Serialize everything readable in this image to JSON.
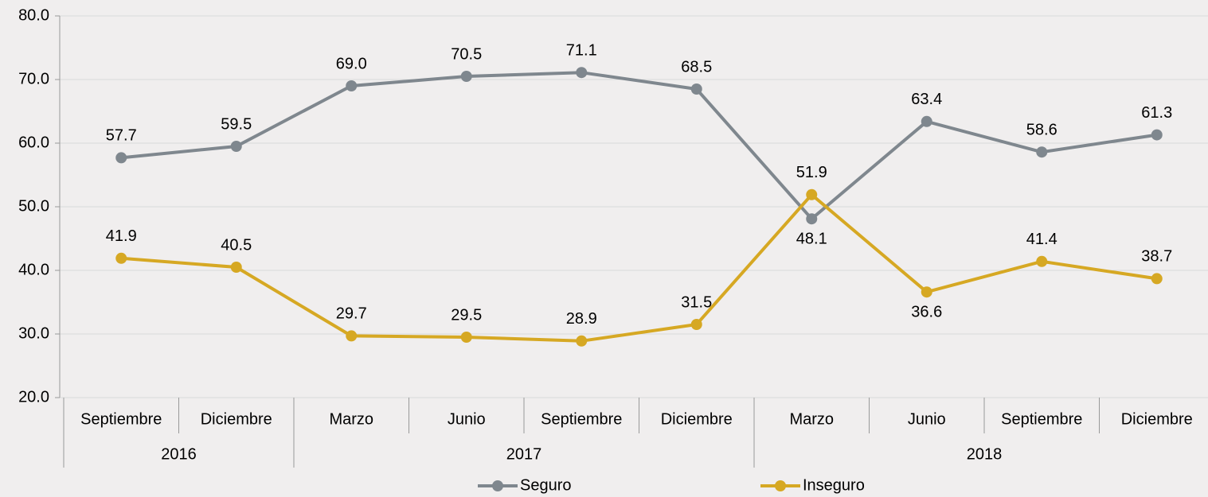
{
  "chart_data": {
    "type": "line",
    "categories": [
      "Septiembre",
      "Diciembre",
      "Marzo",
      "Junio",
      "Septiembre",
      "Diciembre",
      "Marzo",
      "Junio",
      "Septiembre",
      "Diciembre"
    ],
    "groups": [
      {
        "label": "2016",
        "size": 2
      },
      {
        "label": "2017",
        "size": 4
      },
      {
        "label": "2018",
        "size": 4
      }
    ],
    "series": [
      {
        "name": "Seguro",
        "color": "#7f878e",
        "values": [
          57.7,
          59.5,
          69.0,
          70.5,
          71.1,
          68.5,
          48.1,
          63.4,
          58.6,
          61.3
        ],
        "value_labels": [
          "57.7",
          "59.5",
          "69.0",
          "70.5",
          "71.1",
          "68.5",
          "48.1",
          "63.4",
          "58.6",
          "61.3"
        ]
      },
      {
        "name": "Inseguro",
        "color": "#d6a823",
        "values": [
          41.9,
          40.5,
          29.7,
          29.5,
          28.9,
          31.5,
          51.9,
          36.6,
          41.4,
          38.7
        ],
        "value_labels": [
          "41.9",
          "40.5",
          "29.7",
          "29.5",
          "28.9",
          "31.5",
          "51.9",
          "36.6",
          "41.4",
          "38.7"
        ]
      }
    ],
    "ylim": [
      20,
      80
    ],
    "yticks": [
      {
        "value": 20,
        "label": "20.0"
      },
      {
        "value": 30,
        "label": "30.0"
      },
      {
        "value": 40,
        "label": "40.0"
      },
      {
        "value": 50,
        "label": "50.0"
      },
      {
        "value": 60,
        "label": "60.0"
      },
      {
        "value": 70,
        "label": "70.0"
      },
      {
        "value": 80,
        "label": "80.0"
      }
    ],
    "grid": true,
    "legend": "bottom"
  }
}
